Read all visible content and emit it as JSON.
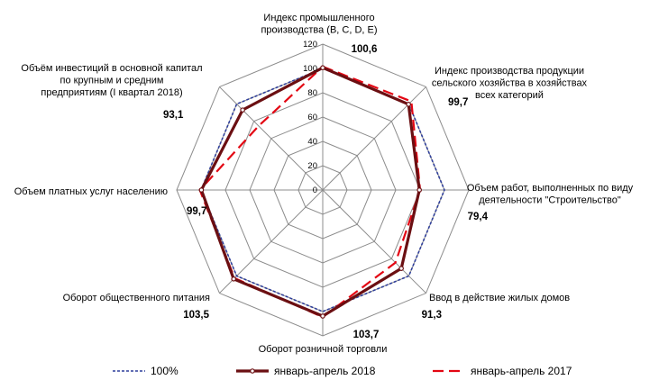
{
  "chart_data": {
    "type": "radar",
    "r_min": 0,
    "r_max": 120,
    "r_ticks": [
      "0",
      "20",
      "40",
      "60",
      "80",
      "100",
      "120"
    ],
    "grid": true,
    "legend_position": "bottom",
    "categories": [
      {
        "label_lines": [
          "Индекс промышленного",
          "производства (B, C, D, E)"
        ],
        "value_label": "100,6"
      },
      {
        "label_lines": [
          "Индекс производства продукции",
          "сельского хозяйства в хозяйствах",
          "всех категорий"
        ],
        "value_label": "99,7"
      },
      {
        "label_lines": [
          "Объем работ, выполненных по виду",
          "деятельности \"Строительство\""
        ],
        "value_label": "79,4"
      },
      {
        "label_lines": [
          "Ввод в действие жилых домов"
        ],
        "value_label": "91,3"
      },
      {
        "label_lines": [
          "Оборот розничной торговли"
        ],
        "value_label": "103,7"
      },
      {
        "label_lines": [
          "Оборот общественного питания"
        ],
        "value_label": "103,5"
      },
      {
        "label_lines": [
          "Объем платных услуг населению"
        ],
        "value_label": "99,7"
      },
      {
        "label_lines": [
          "Объём инвестиций  в основной  капитал",
          "по крупным и средним",
          "предприятиям (I квартал 2018)"
        ],
        "value_label": "93,1"
      }
    ],
    "series": [
      {
        "name": "100%",
        "values": [
          100,
          100,
          100,
          100,
          100,
          100,
          100,
          100
        ],
        "color": "#2f3f9c",
        "style": "dotted"
      },
      {
        "name": "январь-апрель 2018",
        "values": [
          100.6,
          99.7,
          79.4,
          91.3,
          103.7,
          103.5,
          99.7,
          93.1
        ],
        "color": "#6b0f12",
        "style": "thick-markers"
      },
      {
        "name": "январь-апрель 2017",
        "values": [
          101.5,
          103.0,
          80.0,
          84.5,
          104.5,
          102.5,
          101.0,
          74.5
        ],
        "color": "#e30613",
        "style": "dashed"
      }
    ]
  }
}
